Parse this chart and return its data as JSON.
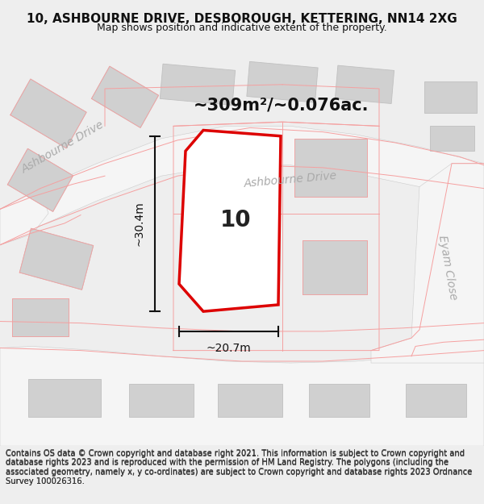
{
  "title": "10, ASHBOURNE DRIVE, DESBOROUGH, KETTERING, NN14 2XG",
  "subtitle": "Map shows position and indicative extent of the property.",
  "footer": "Contains OS data © Crown copyright and database right 2021. This information is subject to Crown copyright and database rights 2023 and is reproduced with the permission of HM Land Registry. The polygons (including the associated geometry, namely x, y co-ordinates) are subject to Crown copyright and database rights 2023 Ordnance Survey 100026316.",
  "area_label": "~309m²/~0.076ac.",
  "width_label": "~20.7m",
  "height_label": "~30.4m",
  "plot_number": "10",
  "bg_color": "#eeeeee",
  "map_bg": "#e2e2e2",
  "road_color": "#f5f5f5",
  "building_color": "#d0d0d0",
  "plot_outline_color": "#dd0000",
  "plot_fill_color": "#ffffff",
  "street_label_color": "#aaaaaa",
  "dim_line_color": "#111111",
  "title_fontsize": 11,
  "subtitle_fontsize": 9,
  "footer_fontsize": 7.2,
  "area_label_fontsize": 15,
  "street_label_fontsize": 10,
  "plot_number_fontsize": 20,
  "dim_label_fontsize": 10,
  "figsize": [
    6.0,
    6.25
  ],
  "dpi": 100
}
